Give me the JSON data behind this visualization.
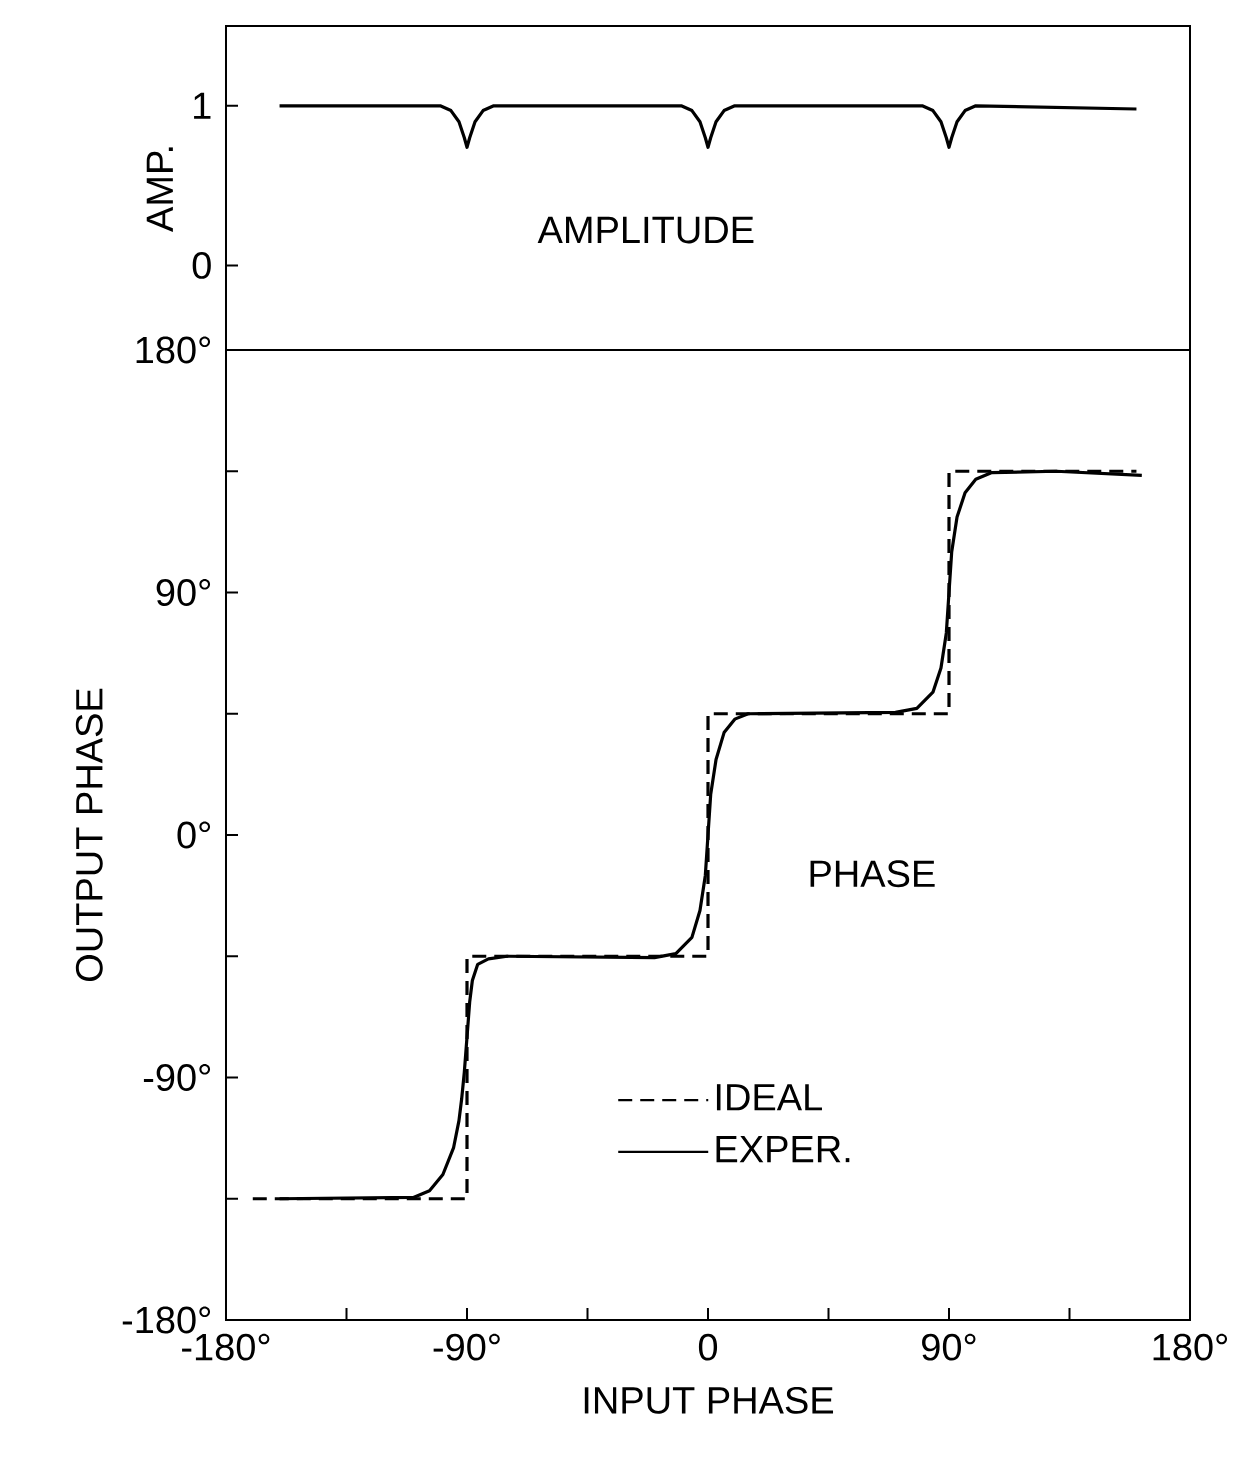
{
  "chart_data": [
    {
      "type": "line",
      "ylabel": "AMP.",
      "annotations": [
        "AMPLITUDE"
      ],
      "xlim": [
        -180,
        180
      ],
      "ylim": [
        -0.53,
        1.5
      ],
      "yticks": [
        0,
        1
      ],
      "tick_labels": "y",
      "marker": "none",
      "series": [
        {
          "color": "#000000",
          "line_style": "solid",
          "x": [
            -160,
            -100,
            -96,
            -93,
            -91,
            -90,
            -89,
            -87,
            -84,
            -80,
            -10,
            -6,
            -3,
            -1,
            0,
            1,
            3,
            6,
            10,
            80,
            84,
            87,
            89,
            90,
            91,
            93,
            96,
            100,
            160
          ],
          "values": [
            1,
            1,
            0.97,
            0.9,
            0.8,
            0.74,
            0.8,
            0.9,
            0.97,
            1,
            1,
            0.97,
            0.9,
            0.8,
            0.74,
            0.8,
            0.9,
            0.97,
            1,
            1,
            0.97,
            0.9,
            0.8,
            0.74,
            0.8,
            0.9,
            0.97,
            1,
            0.98
          ]
        }
      ]
    },
    {
      "type": "line",
      "xlabel": "INPUT PHASE",
      "ylabel": "OUTPUT PHASE",
      "annotations": [
        "PHASE"
      ],
      "xlim": [
        -180,
        180
      ],
      "ylim": [
        -180,
        180
      ],
      "xticks": [
        {
          "value": -180,
          "label": "-180°"
        },
        {
          "value": -135,
          "label": null
        },
        {
          "value": -90,
          "label": "-90°"
        },
        {
          "value": -45,
          "label": null
        },
        0,
        {
          "value": 45,
          "label": null
        },
        {
          "value": 90,
          "label": "90°"
        },
        {
          "value": 135,
          "label": null
        },
        {
          "value": 180,
          "label": "180°"
        }
      ],
      "yticks": [
        {
          "value": -180,
          "label": "-180°"
        },
        {
          "value": -135,
          "label": null
        },
        {
          "value": -90,
          "label": "-90°"
        },
        {
          "value": -45,
          "label": null
        },
        {
          "value": 0,
          "label": "0°"
        },
        {
          "value": 45,
          "label": null
        },
        {
          "value": 90,
          "label": "90°"
        },
        {
          "value": 135,
          "label": null
        },
        {
          "value": 180,
          "label": "180°"
        }
      ],
      "legend": "bottom",
      "marker": "none",
      "series": [
        {
          "name": "IDEAL",
          "color": "#000000",
          "line_style": "dashed",
          "x": [
            -170,
            -90,
            -90,
            0,
            0,
            90,
            90,
            160
          ],
          "values": [
            -135,
            -135,
            -45,
            -45,
            45,
            45,
            135,
            135
          ]
        },
        {
          "name": "EXPER.",
          "color": "#000000",
          "line_style": "solid",
          "x": [
            -160,
            -110,
            -104,
            -99,
            -95,
            -93,
            -92,
            -91,
            -90,
            -89,
            -88,
            -86,
            -82,
            -75,
            -20,
            -12,
            -6,
            -3,
            -1,
            0,
            1,
            3,
            6,
            10,
            15,
            70,
            78,
            84,
            87,
            89,
            90,
            91,
            93,
            96,
            100,
            106,
            130,
            162
          ],
          "values": [
            -135,
            -134.5,
            -132,
            -126,
            -116,
            -106,
            -98,
            -88,
            -75,
            -62,
            -54,
            -48,
            -46,
            -45,
            -45.5,
            -44,
            -38,
            -28,
            -15,
            0,
            15,
            28,
            38,
            43,
            45,
            45.5,
            47,
            53,
            62,
            75,
            90,
            105,
            118,
            127,
            132,
            134.5,
            135,
            133.5
          ]
        }
      ]
    }
  ]
}
